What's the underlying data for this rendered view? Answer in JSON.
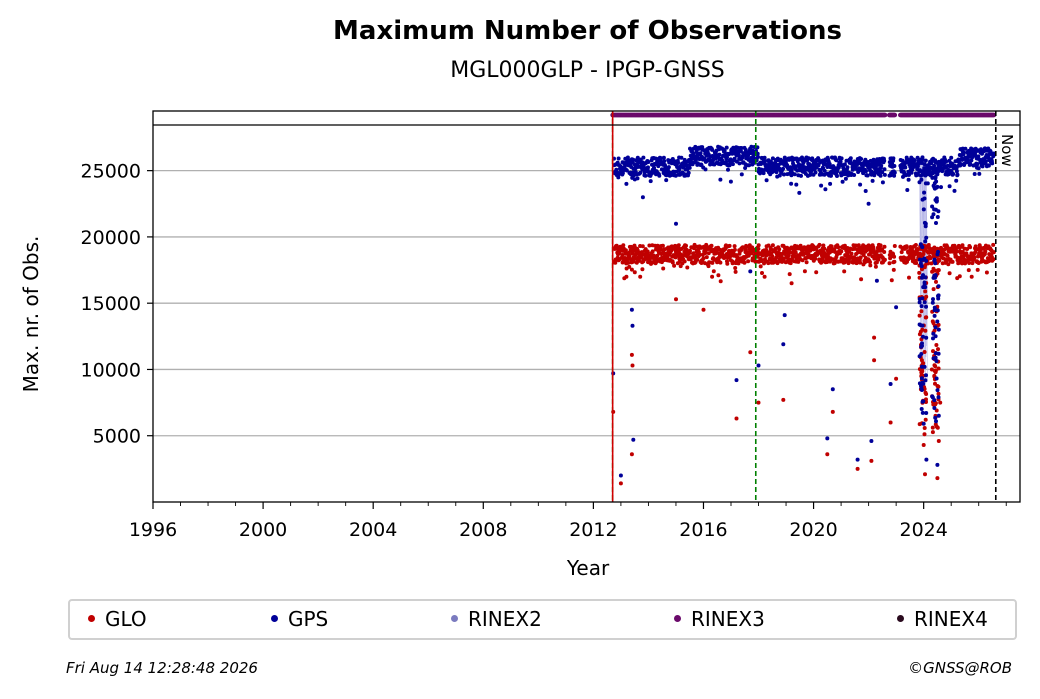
{
  "chart_data": {
    "type": "scatter",
    "title": "Maximum Number of Observations",
    "subtitle": "MGL000GLP - IPGP-GNSS",
    "xlabel": "Year",
    "ylabel": "Max. nr. of Obs.",
    "xlim": [
      1996,
      2027.5
    ],
    "ylim": [
      0,
      29500
    ],
    "x_ticks": [
      "1996",
      "2000",
      "2004",
      "2008",
      "2012",
      "2016",
      "2020",
      "2024"
    ],
    "y_ticks": [
      "5000",
      "10000",
      "15000",
      "20000",
      "25000"
    ],
    "grid": "horizontal",
    "legend_position": "bottom",
    "vertical_markers": [
      {
        "x": 2012.7,
        "color": "#008000",
        "style": "dashed"
      },
      {
        "x": 2012.7,
        "color": "#d00000",
        "style": "solid"
      },
      {
        "x": 2017.9,
        "color": "#008000",
        "style": "dashed"
      },
      {
        "x": 2026.62,
        "color": "#000000",
        "style": "dashed",
        "label": "Now"
      }
    ],
    "series": [
      {
        "name": "GLO",
        "color": "#c00000",
        "typical_band": [
          17500,
          19500
        ],
        "points": [
          [
            2012.72,
            6800
          ],
          [
            2012.8,
            19200
          ],
          [
            2013.0,
            1400
          ],
          [
            2013.2,
            17000
          ],
          [
            2013.4,
            11100
          ],
          [
            2013.42,
            10300
          ],
          [
            2013.4,
            3600
          ],
          [
            2013.7,
            17000
          ],
          [
            2015.0,
            15300
          ],
          [
            2016.0,
            14500
          ],
          [
            2017.2,
            6300
          ],
          [
            2017.7,
            11300
          ],
          [
            2018.0,
            7500
          ],
          [
            2018.9,
            7700
          ],
          [
            2019.2,
            16500
          ],
          [
            2020.5,
            3600
          ],
          [
            2020.7,
            6800
          ],
          [
            2021.6,
            2500
          ],
          [
            2022.1,
            3100
          ],
          [
            2022.2,
            12400
          ],
          [
            2022.2,
            10700
          ],
          [
            2022.8,
            6000
          ],
          [
            2023.0,
            9300
          ],
          [
            2023.9,
            8500
          ],
          [
            2024.0,
            4300
          ],
          [
            2024.05,
            2100
          ],
          [
            2024.3,
            10000
          ],
          [
            2024.5,
            1800
          ],
          [
            2024.55,
            4600
          ],
          [
            2024.6,
            7500
          ]
        ]
      },
      {
        "name": "GPS",
        "color": "#000099",
        "typical_band": [
          25000,
          27000
        ],
        "points": [
          [
            2012.72,
            9700
          ],
          [
            2013.0,
            2000
          ],
          [
            2013.2,
            24000
          ],
          [
            2013.4,
            14500
          ],
          [
            2013.42,
            13300
          ],
          [
            2013.45,
            4700
          ],
          [
            2013.8,
            23000
          ],
          [
            2015.0,
            21000
          ],
          [
            2017.2,
            9200
          ],
          [
            2017.7,
            17400
          ],
          [
            2018.0,
            10300
          ],
          [
            2018.9,
            11900
          ],
          [
            2018.95,
            14100
          ],
          [
            2020.5,
            4800
          ],
          [
            2020.6,
            24000
          ],
          [
            2020.7,
            8500
          ],
          [
            2021.6,
            3200
          ],
          [
            2022.0,
            22500
          ],
          [
            2022.1,
            4600
          ],
          [
            2022.3,
            16700
          ],
          [
            2022.8,
            8900
          ],
          [
            2023.0,
            14700
          ],
          [
            2023.9,
            18000
          ],
          [
            2024.0,
            5900
          ],
          [
            2024.1,
            3200
          ],
          [
            2024.5,
            2800
          ],
          [
            2024.55,
            6500
          ]
        ]
      },
      {
        "name": "RINEX2",
        "color": "#7b7bbf",
        "points": []
      },
      {
        "name": "RINEX3",
        "color": "#6b0a6b",
        "y_level": 29200,
        "segments": [
          [
            2012.7,
            2022.6
          ],
          [
            2022.75,
            2022.95
          ],
          [
            2023.15,
            2026.55
          ]
        ]
      },
      {
        "name": "RINEX4",
        "color": "#2a0a1e",
        "points": []
      }
    ]
  },
  "footer": {
    "timestamp": "Fri Aug 14 12:28:48 2026",
    "copyright": "©GNSS@ROB"
  }
}
